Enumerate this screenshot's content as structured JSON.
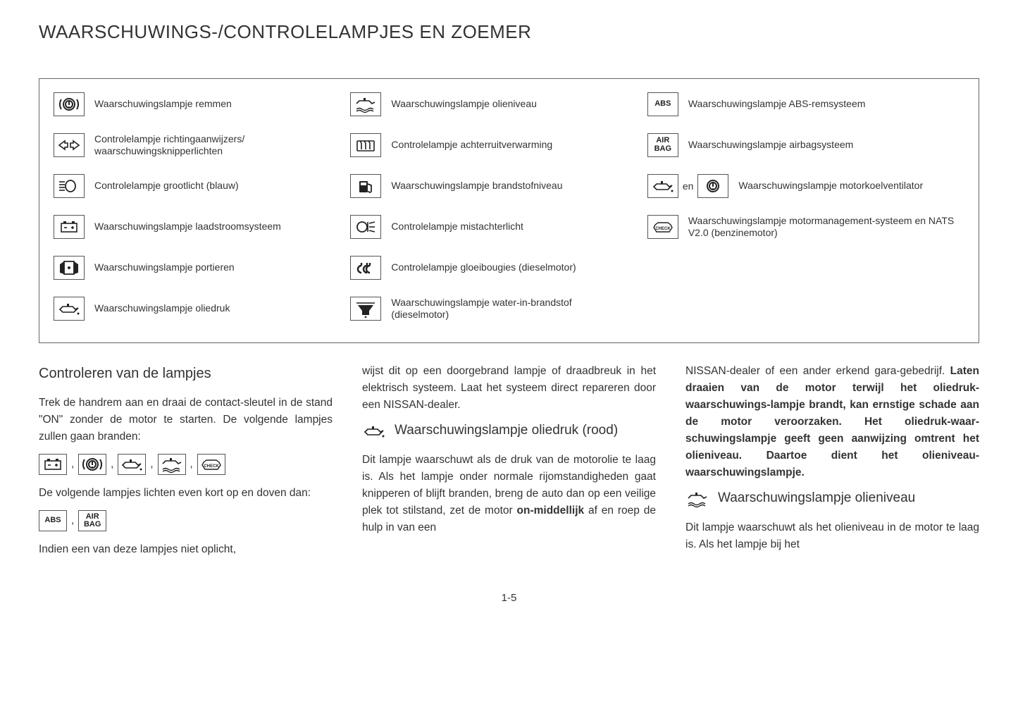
{
  "title": "WAARSCHUWINGS-/CONTROLELAMPJES EN ZOEMER",
  "page_number": "1-5",
  "colors": {
    "text": "#333333",
    "border": "#555555",
    "bg": "#ffffff"
  },
  "table": {
    "col1": [
      {
        "icon": "brake-warning",
        "label": "Waarschuwingslampje remmen"
      },
      {
        "icon": "turn-signals",
        "label": "Controlelampje richtingaanwijzers/ waarschuwingsknipperlichten"
      },
      {
        "icon": "high-beam",
        "label": "Controlelampje grootlicht (blauw)"
      },
      {
        "icon": "battery",
        "label": "Waarschuwingslampje laadstroomsysteem"
      },
      {
        "icon": "door-ajar",
        "label": "Waarschuwingslampje portieren"
      },
      {
        "icon": "oil-pressure",
        "label": "Waarschuwingslampje oliedruk"
      }
    ],
    "col2": [
      {
        "icon": "oil-level",
        "label": "Waarschuwingslampje olieniveau"
      },
      {
        "icon": "rear-defrost",
        "label": "Controlelampje achterruitverwarming"
      },
      {
        "icon": "fuel",
        "label": "Waarschuwingslampje brandstofniveau"
      },
      {
        "icon": "rear-fog",
        "label": "Controlelampje mistachterlicht"
      },
      {
        "icon": "glow-plug",
        "label": "Controlelampje gloeibougies (dieselmotor)"
      },
      {
        "icon": "water-in-fuel",
        "label": "Waarschuwingslampje water-in-brandstof (dieselmotor)"
      }
    ],
    "col3": [
      {
        "icon": "abs-text",
        "text": "ABS",
        "label": "Waarschuwingslampje ABS-remsysteem"
      },
      {
        "icon": "airbag-text",
        "text": "AIR\nBAG",
        "label": "Waarschuwingslampje airbagsysteem"
      },
      {
        "icon": "oil+temp",
        "conj": "en",
        "label": "Waarschuwingslampje motorkoelventilator"
      },
      {
        "icon": "check-engine",
        "label": "Waarschuwingslampje motormanagement-systeem en NATS V2.0 (benzinemotor)"
      }
    ]
  },
  "body": {
    "col1": {
      "heading": "Controleren van de lampjes",
      "p1": "Trek de handrem aan en draai de contact-sleutel in de stand \"ON\" zonder de motor te starten. De volgende lampjes zullen gaan branden:",
      "inline_set1": [
        "battery",
        "brake-warning",
        "oil-pressure",
        "oil-level",
        "check-engine"
      ],
      "p2": "De volgende lampjes lichten even kort op en doven dan:",
      "inline_set2": [
        {
          "icon": "abs-text",
          "text": "ABS"
        },
        {
          "icon": "airbag-text",
          "text": "AIR\nBAG"
        }
      ],
      "p3": "Indien een van deze lampjes niet oplicht,"
    },
    "col2": {
      "p1": "wijst dit op een doorgebrand lampje of draadbreuk in het elektrisch systeem. Laat het systeem direct repareren door een NISSAN-dealer.",
      "sub_icon": "oil-pressure",
      "sub_head": "Waarschuwingslampje oliedruk (rood)",
      "p2a": "Dit lampje waarschuwt als de druk van de motorolie te laag is. Als het lampje onder normale rijomstandigheden gaat knipperen of blijft branden, breng de auto dan op een veilige plek tot stilstand, zet de motor ",
      "p2b_bold": "on-middellijk",
      "p2c": " af en roep de hulp in van een"
    },
    "col3": {
      "p1a": "NISSAN-dealer of een ander erkend gara-gebedrijf. ",
      "p1b_bold": "Laten draaien van de motor terwijl het oliedruk-waarschuwings-lampje brandt, kan ernstige schade aan de motor veroorzaken. Het oliedruk-waar-schuwingslampje geeft geen aanwijzing omtrent het olieniveau. Daartoe dient het olieniveau-waarschuwingslampje.",
      "sub_icon": "oil-level",
      "sub_head": "Waarschuwingslampje olieniveau",
      "p2": "Dit lampje waarschuwt als het olieniveau in de motor te laag is. Als het lampje bij het"
    }
  }
}
